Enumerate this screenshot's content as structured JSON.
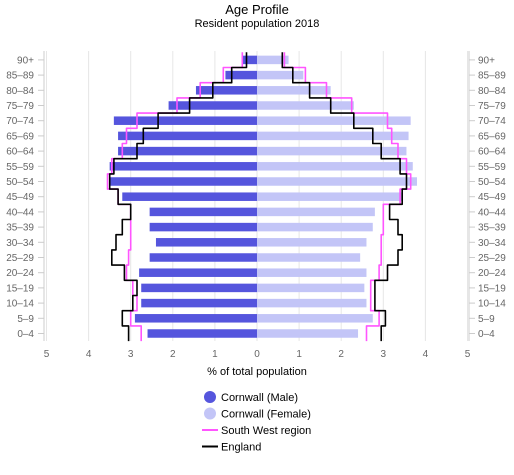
{
  "chart_data": {
    "type": "bar",
    "orientation": "horizontal-pyramid",
    "title": "Age Profile",
    "subtitle": "Resident population 2018",
    "xlabel": "% of total population",
    "xlim": [
      -5,
      5
    ],
    "x_ticks": [
      -5,
      -4,
      -3,
      -2,
      -1,
      0,
      1,
      2,
      3,
      4,
      5
    ],
    "x_tick_labels": [
      "5",
      "4",
      "3",
      "2",
      "1",
      "0",
      "1",
      "2",
      "3",
      "4",
      "5"
    ],
    "categories": [
      "0–4",
      "5–9",
      "10–14",
      "15–19",
      "20–24",
      "25–29",
      "30–34",
      "35–39",
      "40–44",
      "45–49",
      "50–54",
      "55–59",
      "60–64",
      "65–69",
      "70–74",
      "75–79",
      "80–84",
      "85–89",
      "90+"
    ],
    "grid": true,
    "legend_position": "bottom",
    "series": [
      {
        "name": "Cornwall (Male)",
        "kind": "bar",
        "side": "left",
        "color": "#5555dd",
        "values": [
          2.6,
          2.9,
          2.75,
          2.75,
          2.8,
          2.55,
          2.4,
          2.55,
          2.55,
          3.2,
          3.5,
          3.5,
          3.3,
          3.3,
          3.4,
          2.1,
          1.45,
          0.75,
          0.35
        ]
      },
      {
        "name": "Cornwall (Female)",
        "kind": "bar",
        "side": "right",
        "color": "#c3c5f7",
        "values": [
          2.4,
          2.75,
          2.6,
          2.55,
          2.6,
          2.45,
          2.6,
          2.75,
          2.8,
          3.45,
          3.8,
          3.7,
          3.55,
          3.6,
          3.65,
          2.3,
          1.75,
          1.1,
          0.75
        ]
      },
      {
        "name": "South West region",
        "kind": "line",
        "color": "#ff55ff",
        "left": [
          2.75,
          3.0,
          2.85,
          2.95,
          3.1,
          3.05,
          3.0,
          3.0,
          3.0,
          3.3,
          3.55,
          3.45,
          3.2,
          3.1,
          2.85,
          1.9,
          1.35,
          0.8,
          0.35
        ],
        "right": [
          2.6,
          2.9,
          2.7,
          2.7,
          2.9,
          2.95,
          2.95,
          3.0,
          3.0,
          3.4,
          3.65,
          3.55,
          3.35,
          3.2,
          3.1,
          2.25,
          1.65,
          1.15,
          0.65
        ]
      },
      {
        "name": "England",
        "kind": "line",
        "color": "#000000",
        "left": [
          3.05,
          3.2,
          2.95,
          2.85,
          3.15,
          3.45,
          3.35,
          3.2,
          3.0,
          3.3,
          3.5,
          3.4,
          2.85,
          2.7,
          2.35,
          1.6,
          1.05,
          0.6,
          0.25
        ],
        "right": [
          2.95,
          3.05,
          2.8,
          2.8,
          3.1,
          3.35,
          3.45,
          3.35,
          3.15,
          3.45,
          3.55,
          3.4,
          2.95,
          2.75,
          2.3,
          1.75,
          1.25,
          0.85,
          0.6
        ]
      }
    ]
  }
}
